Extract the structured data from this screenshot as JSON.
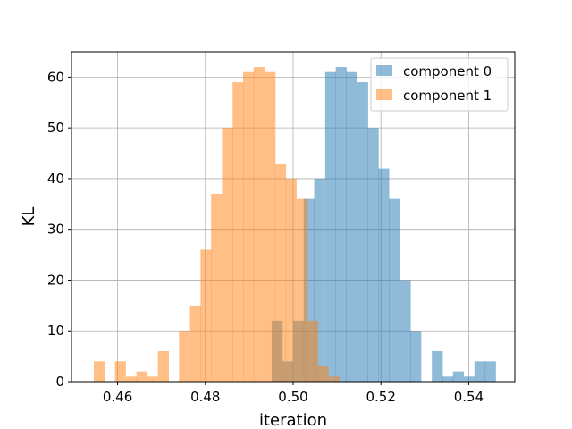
{
  "chart_data": {
    "type": "histogram",
    "xlabel": "iteration",
    "ylabel": "KL",
    "xlim": [
      0.4495,
      0.5505
    ],
    "ylim": [
      0,
      65
    ],
    "xticks": [
      0.46,
      0.48,
      0.5,
      0.52,
      0.54
    ],
    "xtick_labels": [
      "0.46",
      "0.48",
      "0.50",
      "0.52",
      "0.54"
    ],
    "yticks": [
      0,
      10,
      20,
      30,
      40,
      50,
      60
    ],
    "ytick_labels": [
      "0",
      "10",
      "20",
      "30",
      "40",
      "50",
      "60"
    ],
    "grid": true,
    "legend_position": "top-right",
    "series": [
      {
        "name": "component 0",
        "color": "#1f77b4",
        "alpha": 0.5,
        "bin_width": 0.00243,
        "bin_edges_start": [
          0.4951,
          0.4975,
          0.5,
          0.5024,
          0.5048,
          0.5073,
          0.5097,
          0.5121,
          0.5146,
          0.517,
          0.5194,
          0.5218,
          0.5243,
          0.5267,
          0.5291,
          0.5316,
          0.534,
          0.5364,
          0.5389,
          0.5413,
          0.5437
        ],
        "counts": [
          12,
          4,
          12,
          36,
          40,
          61,
          62,
          61,
          59,
          50,
          42,
          36,
          20,
          10,
          0,
          6,
          1,
          2,
          1,
          4,
          4
        ]
      },
      {
        "name": "component 1",
        "color": "#ff7f0e",
        "alpha": 0.5,
        "bin_width": 0.00243,
        "bin_edges_start": [
          0.4546,
          0.457,
          0.4594,
          0.4619,
          0.4643,
          0.4667,
          0.4692,
          0.4716,
          0.474,
          0.4765,
          0.4789,
          0.4813,
          0.4838,
          0.4862,
          0.4886,
          0.491,
          0.4935,
          0.4959,
          0.4983,
          0.5008,
          0.5032,
          0.5056,
          0.5081
        ],
        "counts": [
          4,
          0,
          4,
          1,
          2,
          1,
          6,
          0,
          10,
          15,
          26,
          37,
          50,
          59,
          61,
          62,
          61,
          43,
          40,
          36,
          12,
          3,
          1
        ]
      }
    ]
  }
}
